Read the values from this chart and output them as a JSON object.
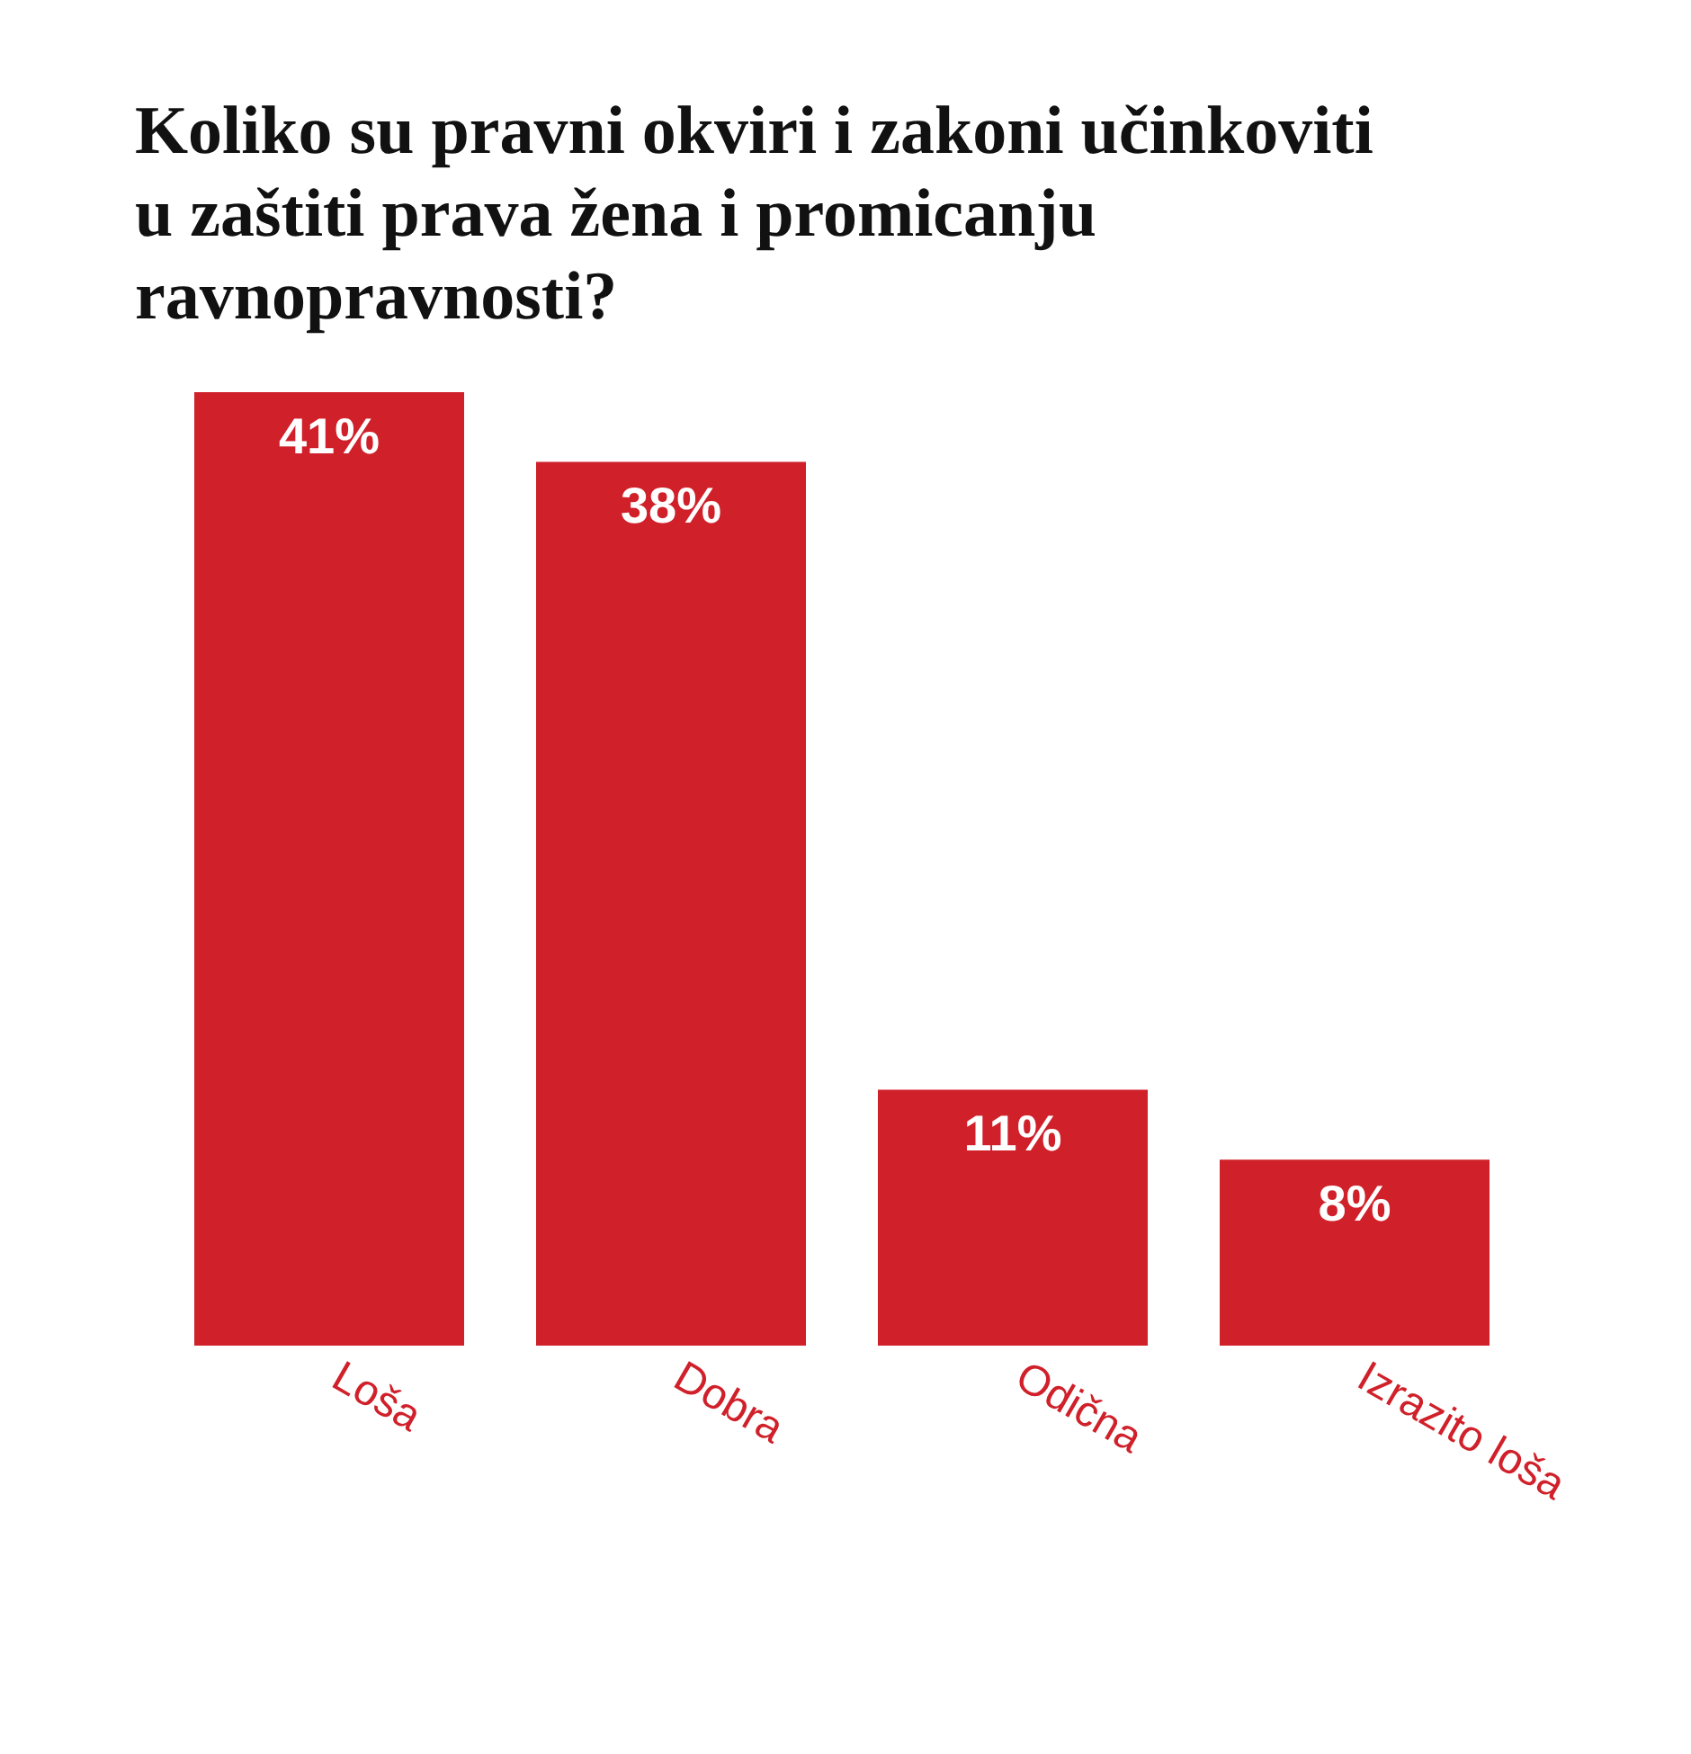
{
  "chart_data": {
    "type": "bar",
    "title": "Koliko su pravni okviri i zakoni učinkoviti u zaštiti prava žena i promicanju ravnopravnosti?",
    "categories": [
      "Loša",
      "Dobra",
      "Odična",
      "Izrazito loša"
    ],
    "values": [
      41,
      38,
      11,
      8
    ],
    "value_labels": [
      "41%",
      "38%",
      "11%",
      "8%"
    ],
    "color": "#d0202a",
    "grid": false,
    "legend": false
  }
}
